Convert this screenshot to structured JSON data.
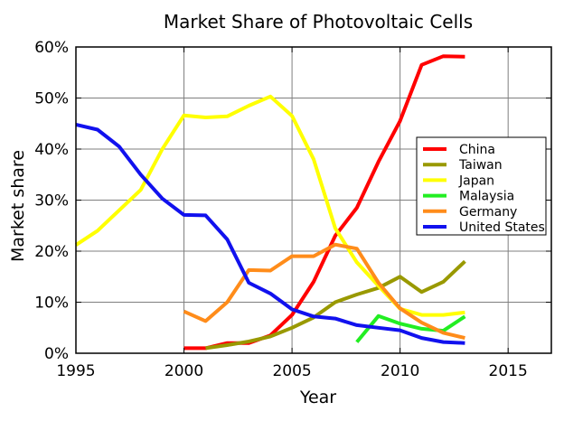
{
  "chart_data": {
    "type": "line",
    "title": "Market Share of Photovoltaic Cells",
    "xlabel": "Year",
    "ylabel": "Market share",
    "xlim": [
      1995,
      2017
    ],
    "ylim": [
      0,
      60
    ],
    "x_ticks": [
      1995,
      2000,
      2005,
      2010,
      2015
    ],
    "x_tick_labels": [
      "1995",
      "2000",
      "2005",
      "2010",
      "2015"
    ],
    "y_ticks": [
      0,
      10,
      20,
      30,
      40,
      50,
      60
    ],
    "y_tick_labels": [
      "0%",
      "10%",
      "20%",
      "30%",
      "40%",
      "50%",
      "60%"
    ],
    "grid": true,
    "legend_position": "right",
    "series": [
      {
        "name": "China",
        "color": "#ff0000",
        "x": [
          2000,
          2001,
          2002,
          2003,
          2004,
          2005,
          2006,
          2007,
          2008,
          2009,
          2010,
          2011,
          2012,
          2013
        ],
        "y": [
          1,
          1,
          2,
          2,
          3.5,
          7.5,
          14,
          23,
          28.5,
          37.5,
          45.5,
          56.5,
          58.2,
          58.1
        ]
      },
      {
        "name": "Taiwan",
        "color": "#999900",
        "x": [
          2001,
          2002,
          2003,
          2004,
          2005,
          2006,
          2007,
          2008,
          2009,
          2010,
          2011,
          2012,
          2013
        ],
        "y": [
          1,
          1.6,
          2.3,
          3.3,
          5,
          7,
          10,
          11.5,
          12.8,
          15,
          12,
          14,
          18
        ]
      },
      {
        "name": "Japan",
        "color": "#ffff00",
        "x": [
          1995,
          1996,
          1997,
          1998,
          1999,
          2000,
          2001,
          2002,
          2003,
          2004,
          2005,
          2006,
          2007,
          2008,
          2009,
          2010,
          2011,
          2012,
          2013
        ],
        "y": [
          21.2,
          24,
          28,
          32,
          40,
          46.6,
          46.2,
          46.4,
          48.5,
          50.3,
          46.5,
          38,
          24.5,
          17.8,
          13.2,
          8.7,
          7.5,
          7.5,
          8
        ]
      },
      {
        "name": "Malaysia",
        "color": "#22ee22",
        "x": [
          2008,
          2009,
          2010,
          2011,
          2012,
          2013
        ],
        "y": [
          2.2,
          7.3,
          5.8,
          4.8,
          4.4,
          7.2
        ]
      },
      {
        "name": "Germany",
        "color": "#ff8c1a",
        "x": [
          2000,
          2001,
          2002,
          2003,
          2004,
          2005,
          2006,
          2007,
          2008,
          2009,
          2010,
          2011,
          2012,
          2013
        ],
        "y": [
          8.2,
          6.3,
          10,
          16.3,
          16.2,
          19,
          19,
          21.3,
          20.5,
          13.8,
          8.8,
          6,
          4,
          3
        ]
      },
      {
        "name": "United States",
        "color": "#1111ee",
        "x": [
          1995,
          1996,
          1997,
          1998,
          1999,
          2000,
          2001,
          2002,
          2003,
          2004,
          2005,
          2006,
          2007,
          2008,
          2009,
          2010,
          2011,
          2012,
          2013
        ],
        "y": [
          44.8,
          43.8,
          40.5,
          35,
          30.3,
          27.1,
          27,
          22.3,
          13.8,
          11.7,
          8.6,
          7.2,
          6.8,
          5.5,
          5,
          4.5,
          3,
          2.2,
          2
        ]
      }
    ]
  }
}
